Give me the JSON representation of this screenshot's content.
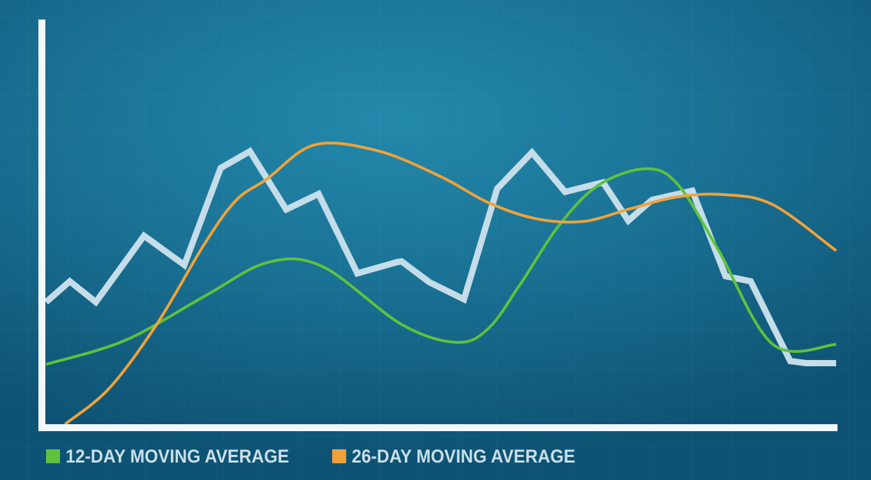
{
  "colors": {
    "price": "#c4dde9",
    "axis": "#f2f7f9",
    "ma12": "#5fc23c",
    "ma26": "#f0a23a"
  },
  "legend": {
    "items": [
      {
        "label": "12-DAY MOVING AVERAGE",
        "color": "#5fc23c"
      },
      {
        "label": "26-DAY MOVING AVERAGE",
        "color": "#f0a23a"
      }
    ]
  },
  "chart_data": {
    "type": "line",
    "title": "",
    "xlabel": "",
    "ylabel": "",
    "xlim": [
      0,
      100
    ],
    "ylim": [
      0,
      100
    ],
    "grid": true,
    "legend_position": "bottom-left",
    "series": [
      {
        "name": "",
        "role": "price",
        "x": [
          0,
          3.0,
          6.3,
          12.4,
          17.5,
          22.1,
          25.8,
          30.4,
          34.5,
          39.4,
          44.4,
          45.0,
          48.5,
          52.9,
          57.1,
          61.5,
          65.7,
          70.5,
          73.7,
          76.7,
          81.8,
          86.0,
          89.2,
          94.2,
          96.2,
          100
        ],
        "y": [
          30.6,
          35.8,
          30.6,
          47.2,
          39.9,
          64.2,
          68.4,
          53.8,
          57.7,
          37.8,
          40.6,
          40.8,
          35.6,
          31.3,
          59.0,
          68.1,
          58.2,
          60.6,
          51.0,
          56.2,
          58.5,
          37.1,
          35.8,
          15.8,
          15.3,
          15.3
        ]
      },
      {
        "name": "12-DAY MOVING AVERAGE",
        "role": "ma12",
        "x": [
          0,
          10,
          20,
          28,
          35,
          45,
          52,
          56,
          60,
          65,
          70,
          76,
          80,
          85,
          92,
          100
        ],
        "y": [
          15.0,
          21.0,
          32.0,
          40.5,
          39.5,
          25.0,
          20.5,
          24.0,
          35.0,
          50.0,
          60.0,
          64.0,
          60.0,
          44.0,
          20.0,
          20.0
        ]
      },
      {
        "name": "26-DAY MOVING AVERAGE",
        "role": "ma26",
        "x": [
          2.4,
          8,
          14,
          20,
          24,
          28,
          34,
          42,
          50,
          56,
          62,
          68,
          74,
          80,
          86,
          92,
          100
        ],
        "y": [
          0.0,
          9.0,
          25.0,
          45.0,
          56.0,
          61.5,
          70.0,
          68.5,
          62.0,
          55.5,
          51.5,
          50.8,
          54.0,
          57.0,
          57.5,
          55.0,
          43.5
        ]
      }
    ]
  }
}
